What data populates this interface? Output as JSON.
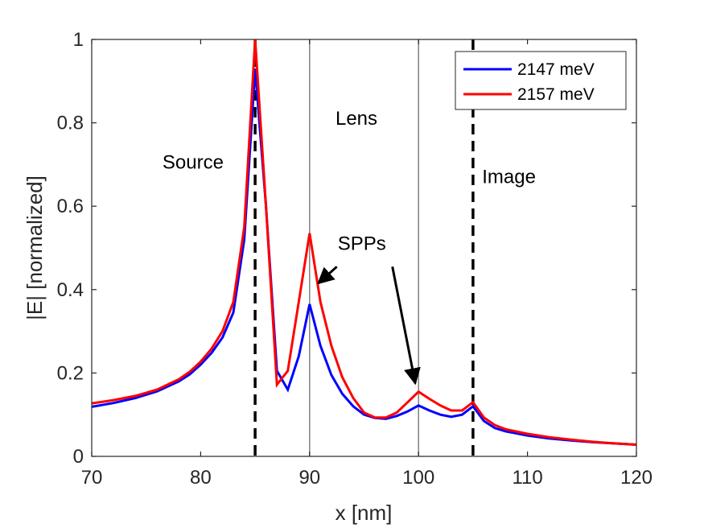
{
  "chart_data": {
    "type": "line",
    "title": "",
    "xlabel": "x [nm]",
    "ylabel": "|E| [normalized]",
    "xlim": [
      70,
      120
    ],
    "ylim": [
      0,
      1
    ],
    "xticks": [
      70,
      80,
      90,
      100,
      110,
      120
    ],
    "yticks": [
      0,
      0.2,
      0.4,
      0.6,
      0.8,
      1
    ],
    "xtick_labels": [
      "70",
      "80",
      "90",
      "100",
      "110",
      "120"
    ],
    "ytick_labels": [
      "0",
      "0.2",
      "0.4",
      "0.6",
      "0.8",
      "1"
    ],
    "grid": false,
    "legend_position": "top-right",
    "series": [
      {
        "name": "2147 meV",
        "color": "#0000ff",
        "x": [
          70,
          72,
          74,
          76,
          78,
          79,
          80,
          81,
          82,
          83,
          84,
          85,
          86,
          87,
          88,
          89,
          90,
          91,
          92,
          93,
          94,
          95,
          96,
          97,
          98,
          99,
          100,
          101,
          102,
          103,
          104,
          105,
          106,
          107,
          108,
          110,
          112,
          114,
          116,
          118,
          120
        ],
        "y": [
          0.119,
          0.128,
          0.14,
          0.156,
          0.18,
          0.197,
          0.22,
          0.248,
          0.285,
          0.345,
          0.52,
          0.93,
          0.6,
          0.205,
          0.16,
          0.24,
          0.365,
          0.265,
          0.195,
          0.15,
          0.12,
          0.1,
          0.092,
          0.09,
          0.097,
          0.108,
          0.122,
          0.11,
          0.1,
          0.095,
          0.1,
          0.12,
          0.085,
          0.068,
          0.06,
          0.05,
          0.043,
          0.038,
          0.034,
          0.031,
          0.028
        ]
      },
      {
        "name": "2157 meV",
        "color": "#ff0000",
        "x": [
          70,
          72,
          74,
          76,
          78,
          79,
          80,
          81,
          82,
          83,
          84,
          85,
          86,
          87,
          88,
          89,
          90,
          91,
          92,
          93,
          94,
          95,
          96,
          97,
          98,
          99,
          100,
          101,
          102,
          103,
          104,
          105,
          106,
          107,
          108,
          110,
          112,
          114,
          116,
          118,
          120
        ],
        "y": [
          0.127,
          0.135,
          0.145,
          0.16,
          0.185,
          0.203,
          0.227,
          0.258,
          0.3,
          0.37,
          0.55,
          1.0,
          0.6,
          0.172,
          0.205,
          0.37,
          0.535,
          0.37,
          0.265,
          0.19,
          0.14,
          0.105,
          0.093,
          0.093,
          0.105,
          0.13,
          0.155,
          0.138,
          0.122,
          0.11,
          0.11,
          0.13,
          0.093,
          0.075,
          0.065,
          0.054,
          0.046,
          0.04,
          0.035,
          0.031,
          0.028
        ]
      }
    ],
    "vertical_lines": [
      {
        "x": 85,
        "style": "dashed",
        "color": "#000000"
      },
      {
        "x": 90,
        "style": "solid",
        "color": "#808080"
      },
      {
        "x": 100,
        "style": "solid",
        "color": "#808080"
      },
      {
        "x": 105,
        "style": "dashed",
        "color": "#000000"
      }
    ],
    "annotations": [
      {
        "text": "Source",
        "x": 79.3,
        "y": 0.69
      },
      {
        "text": "Lens",
        "x": 94.3,
        "y": 0.795
      },
      {
        "text": "Image",
        "x": 108.3,
        "y": 0.655
      },
      {
        "text": "SPPs",
        "x": 94.8,
        "y": 0.495
      }
    ],
    "arrows": [
      {
        "from": [
          92.5,
          0.455
        ],
        "to": [
          90.8,
          0.415
        ]
      },
      {
        "from": [
          97.6,
          0.455
        ],
        "to": [
          99.7,
          0.175
        ]
      }
    ]
  }
}
